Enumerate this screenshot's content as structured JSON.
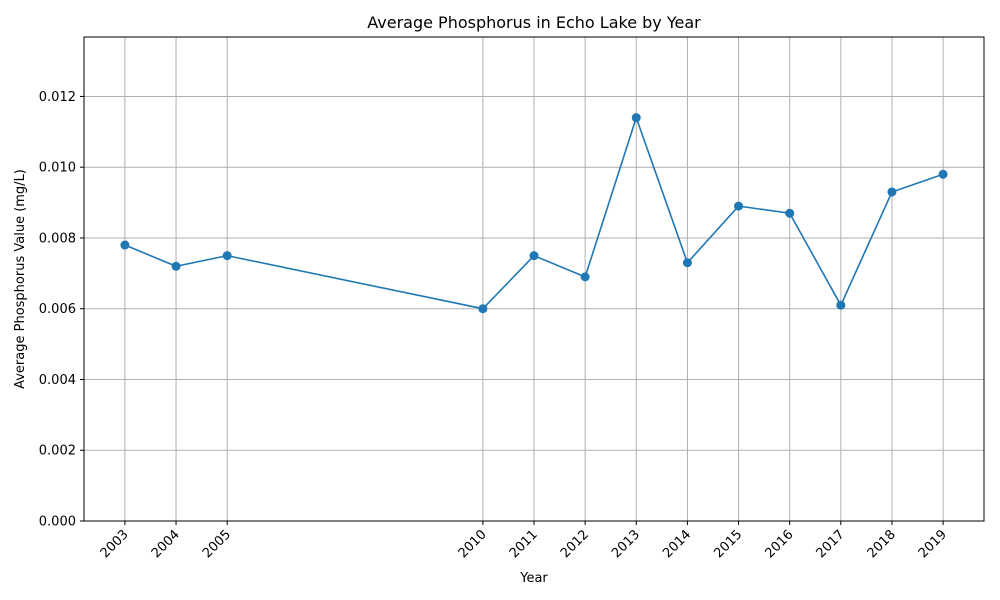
{
  "chart_data": {
    "type": "line",
    "title": "Average Phosphorus in Echo Lake by Year",
    "xlabel": "Year",
    "ylabel": "Average Phosphorus Value (mg/L)",
    "grid": true,
    "x": [
      2003,
      2004,
      2005,
      2010,
      2011,
      2012,
      2013,
      2014,
      2015,
      2016,
      2017,
      2018,
      2019
    ],
    "x_tick_labels": [
      "2003",
      "2004",
      "2005",
      "2010",
      "2011",
      "2012",
      "2013",
      "2014",
      "2015",
      "2016",
      "2017",
      "2018",
      "2019"
    ],
    "y": [
      0.0078,
      0.0072,
      0.0075,
      0.006,
      0.0075,
      0.0069,
      0.0114,
      0.0073,
      0.0089,
      0.0087,
      0.0061,
      0.0093,
      0.0098
    ],
    "xlim": [
      2002.2,
      2019.8
    ],
    "ylim": [
      0,
      0.01368
    ],
    "y_ticks": [
      0,
      0.002,
      0.004,
      0.006,
      0.008,
      0.01,
      0.012
    ],
    "y_tick_labels": [
      "0.000",
      "0.002",
      "0.004",
      "0.006",
      "0.008",
      "0.010",
      "0.012"
    ],
    "line_color": "#1f77b4",
    "marker": "circle"
  }
}
